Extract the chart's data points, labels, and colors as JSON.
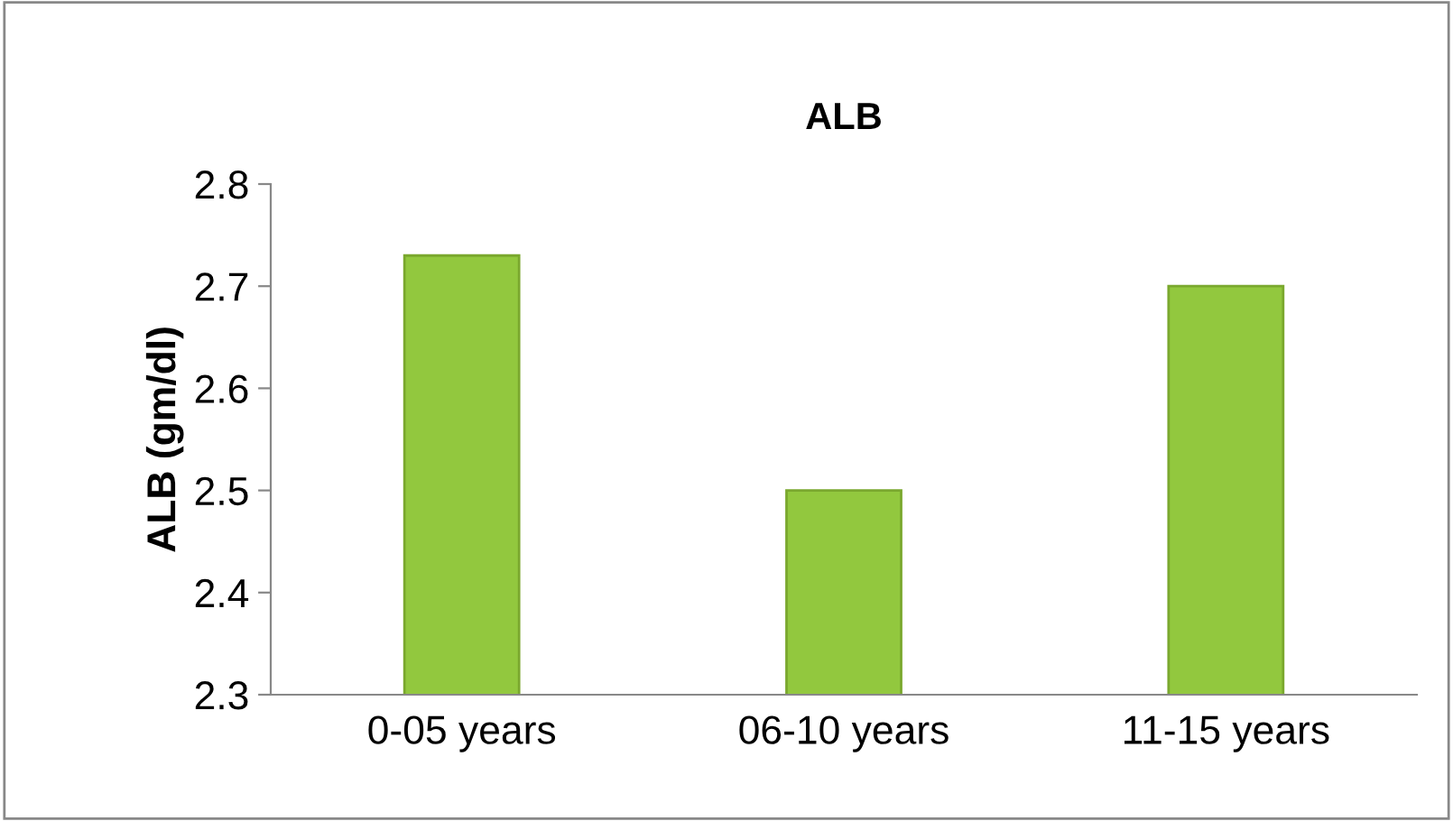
{
  "chart_data": {
    "type": "bar",
    "title": "ALB",
    "ylabel": "ALB (gm/dl)",
    "categories": [
      "0-05 years",
      "06-10 years",
      "11-15 years"
    ],
    "values": [
      2.73,
      2.5,
      2.7
    ],
    "color": "#92c83e",
    "ylim": [
      2.3,
      2.8
    ],
    "yticks": [
      2.3,
      2.4,
      2.5,
      2.6,
      2.7,
      2.8
    ],
    "grid": false
  }
}
